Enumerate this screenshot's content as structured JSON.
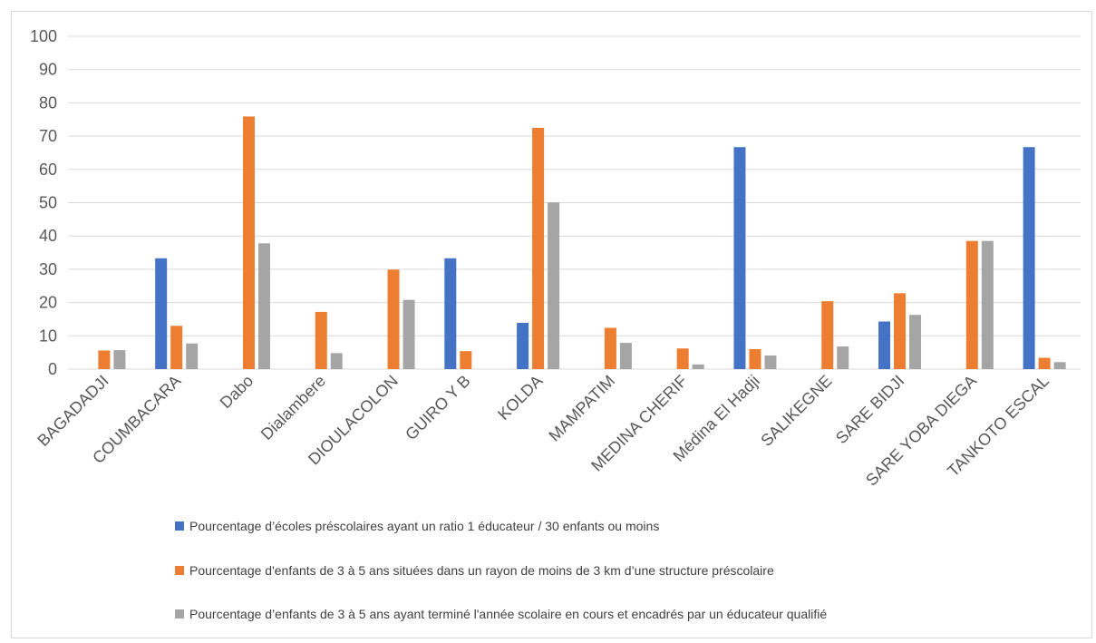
{
  "chart_data": {
    "type": "bar",
    "ylim": [
      0,
      100
    ],
    "yticks": [
      0,
      10,
      20,
      30,
      40,
      50,
      60,
      70,
      80,
      90,
      100
    ],
    "grid": true,
    "legend_position": "bottom",
    "categories": [
      "BAGADADJI",
      "COUMBACARA",
      "Dabo",
      "Dialambere",
      "DIOULACOLON",
      "GUIRO Y B",
      "KOLDA",
      "MAMPATIM",
      "MEDINA CHERIF",
      "Médina El Hadji",
      "SALIKEGNE",
      "SARE BIDJI",
      "SARE YOBA DIEGA",
      "TANKOTO ESCAL"
    ],
    "series": [
      {
        "name": "Pourcentage d’écoles préscolaires ayant un ratio 1 éducateur  / 30 enfants ou moins",
        "color": "#4472C4",
        "values": [
          0,
          33.3,
          0,
          0,
          0,
          33.3,
          13.9,
          0,
          0,
          66.7,
          0,
          14.3,
          0,
          66.7
        ]
      },
      {
        "name": "Pourcentage d'enfants de 3 à 5 ans situées dans un rayon de moins de 3 km d’une structure préscolaire",
        "color": "#ED7D31",
        "values": [
          5.6,
          13.0,
          75.9,
          17.2,
          29.9,
          5.4,
          72.5,
          12.4,
          6.2,
          6.0,
          20.4,
          22.8,
          38.5,
          3.4
        ]
      },
      {
        "name": "Pourcentage  d’enfants de 3 à 5 ans ayant terminé l'année scolaire en cours et encadrés par un éducateur qualifié",
        "color": "#A5A5A5",
        "values": [
          5.7,
          7.7,
          37.8,
          4.8,
          20.8,
          0,
          50.1,
          7.9,
          1.4,
          4.1,
          6.8,
          16.3,
          38.5,
          2.1
        ]
      }
    ]
  }
}
